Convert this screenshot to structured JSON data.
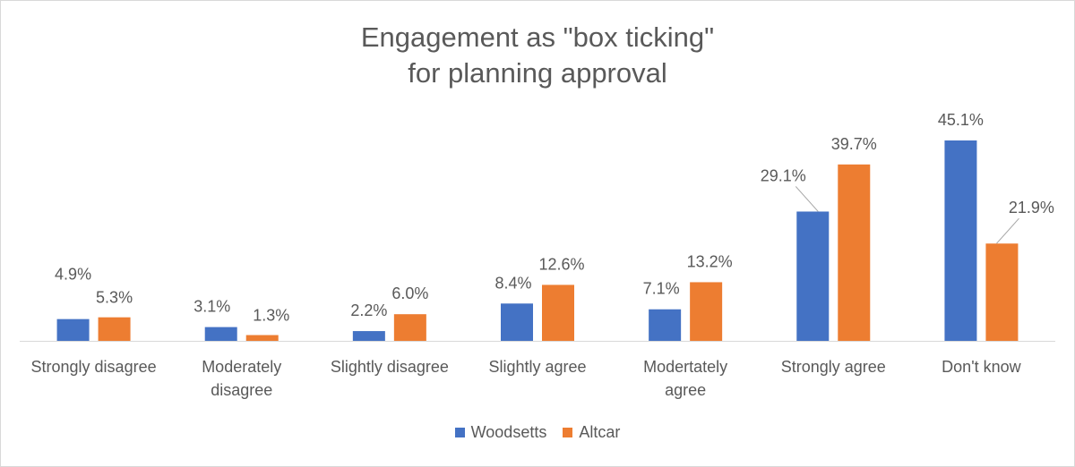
{
  "chart_data": {
    "type": "bar",
    "title_lines": [
      "Engagement as \"box ticking\"",
      "for planning approval"
    ],
    "categories": [
      [
        "Strongly disagree"
      ],
      [
        "Moderately",
        "disagree"
      ],
      [
        "Slightly disagree"
      ],
      [
        "Slightly agree"
      ],
      [
        "Modertately",
        "agree"
      ],
      [
        "Strongly agree"
      ],
      [
        "Don't know"
      ]
    ],
    "series": [
      {
        "name": "Woodsetts",
        "color": "#4472c4",
        "values": [
          4.9,
          3.1,
          2.2,
          8.4,
          7.1,
          29.1,
          45.1
        ],
        "labels": [
          "4.9%",
          "3.1%",
          "2.2%",
          "8.4%",
          "7.1%",
          "29.1%",
          "45.1%"
        ]
      },
      {
        "name": "Altcar",
        "color": "#ed7d31",
        "values": [
          5.3,
          1.3,
          6.0,
          12.6,
          13.2,
          39.7,
          21.9
        ],
        "labels": [
          "5.3%",
          "1.3%",
          "6.0%",
          "12.6%",
          "13.2%",
          "39.7%",
          "21.9%"
        ]
      }
    ],
    "ylim": [
      0,
      45.1
    ],
    "grid": false,
    "legend_position": "bottom",
    "axis_color": "#d9d9d9",
    "label_color": "#595959"
  }
}
